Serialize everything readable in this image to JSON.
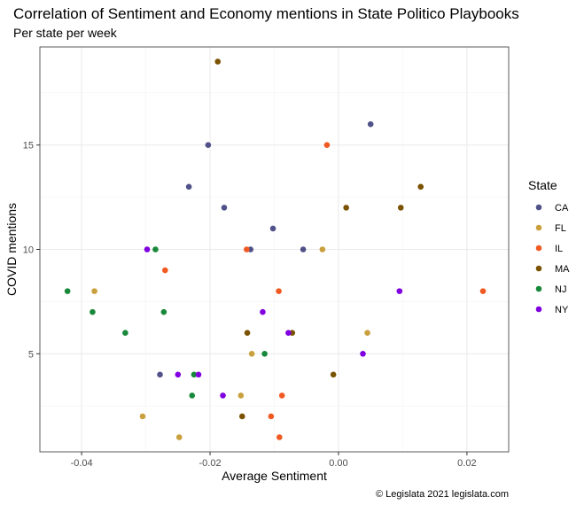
{
  "chart_data": {
    "type": "scatter",
    "title": "Correlation of Sentiment and Economy mentions in State Politico Playbooks",
    "subtitle": "Per state per week",
    "xlabel": "Average Sentiment",
    "ylabel": "COVID mentions",
    "caption": "© Legislata 2021 legislata.com",
    "xlim": [
      -0.0465,
      0.0265
    ],
    "ylim": [
      0.3,
      19.7
    ],
    "x_ticks": [
      -0.04,
      -0.02,
      0.0,
      0.02
    ],
    "x_tick_labels": [
      "-0.04",
      "-0.02",
      "0.00",
      "0.02"
    ],
    "y_ticks": [
      5,
      10,
      15
    ],
    "y_tick_labels": [
      "5",
      "10",
      "15"
    ],
    "grid": true,
    "legend": {
      "title": "State",
      "position": "right"
    },
    "series": [
      {
        "name": "CA",
        "color": "#51518a",
        "points": [
          [
            0.005,
            16
          ],
          [
            -0.0203,
            15
          ],
          [
            -0.0233,
            13
          ],
          [
            -0.0178,
            12
          ],
          [
            -0.0102,
            11
          ],
          [
            -0.0137,
            10
          ],
          [
            -0.0055,
            10
          ],
          [
            -0.0278,
            4
          ]
        ]
      },
      {
        "name": "FL",
        "color": "#c9a03d",
        "points": [
          [
            -0.0025,
            10
          ],
          [
            -0.038,
            8
          ],
          [
            0.0045,
            6
          ],
          [
            -0.0135,
            5
          ],
          [
            -0.0152,
            3
          ],
          [
            -0.0305,
            2
          ],
          [
            -0.0248,
            1
          ]
        ]
      },
      {
        "name": "IL",
        "color": "#f05a22",
        "points": [
          [
            -0.0018,
            15
          ],
          [
            -0.0143,
            10
          ],
          [
            -0.027,
            9
          ],
          [
            -0.0093,
            8
          ],
          [
            0.0225,
            8
          ],
          [
            -0.0088,
            3
          ],
          [
            -0.0105,
            2
          ],
          [
            -0.0092,
            1
          ]
        ]
      },
      {
        "name": "MA",
        "color": "#7a5200",
        "points": [
          [
            -0.0188,
            19
          ],
          [
            0.0128,
            13
          ],
          [
            0.0012,
            12
          ],
          [
            0.0097,
            12
          ],
          [
            -0.0142,
            6
          ],
          [
            -0.0072,
            6
          ],
          [
            -0.0008,
            4
          ],
          [
            -0.015,
            2
          ]
        ]
      },
      {
        "name": "NJ",
        "color": "#18883a",
        "points": [
          [
            -0.0285,
            10
          ],
          [
            -0.0422,
            8
          ],
          [
            -0.0383,
            7
          ],
          [
            -0.0272,
            7
          ],
          [
            -0.0332,
            6
          ],
          [
            -0.0115,
            5
          ],
          [
            -0.0225,
            4
          ],
          [
            -0.0228,
            3
          ]
        ]
      },
      {
        "name": "NY",
        "color": "#8000e0",
        "points": [
          [
            -0.0298,
            10
          ],
          [
            0.0095,
            8
          ],
          [
            -0.0118,
            7
          ],
          [
            -0.0078,
            6
          ],
          [
            0.0038,
            5
          ],
          [
            -0.025,
            4
          ],
          [
            -0.0218,
            4
          ],
          [
            -0.018,
            3
          ]
        ]
      }
    ]
  }
}
